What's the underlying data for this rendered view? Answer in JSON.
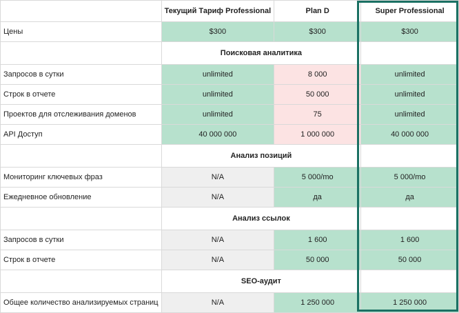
{
  "columns": [
    "",
    "Текущий Тариф Professional",
    "Plan D",
    "Super Professional"
  ],
  "rows": [
    {
      "type": "data",
      "label": "Цены",
      "cells": [
        {
          "text": "$300",
          "fill": "green"
        },
        {
          "text": "$300",
          "fill": "green"
        },
        {
          "text": "$300",
          "fill": "green"
        }
      ]
    },
    {
      "type": "section",
      "title": "Поисковая аналитика"
    },
    {
      "type": "data",
      "label": "Запросов в сутки",
      "cells": [
        {
          "text": "unlimited",
          "fill": "green"
        },
        {
          "text": "8 000",
          "fill": "red"
        },
        {
          "text": "unlimited",
          "fill": "green"
        }
      ]
    },
    {
      "type": "data",
      "label": "Строк в отчете",
      "cells": [
        {
          "text": "unlimited",
          "fill": "green"
        },
        {
          "text": "50 000",
          "fill": "red"
        },
        {
          "text": "unlimited",
          "fill": "green"
        }
      ]
    },
    {
      "type": "data",
      "label": "Проектов для отслеживания доменов",
      "cells": [
        {
          "text": "unlimited",
          "fill": "green"
        },
        {
          "text": "75",
          "fill": "red"
        },
        {
          "text": "unlimited",
          "fill": "green"
        }
      ]
    },
    {
      "type": "data",
      "label": "API Доступ",
      "cells": [
        {
          "text": "40 000 000",
          "fill": "green"
        },
        {
          "text": "1 000 000",
          "fill": "red"
        },
        {
          "text": "40 000 000",
          "fill": "green"
        }
      ]
    },
    {
      "type": "section",
      "title": "Анализ позиций"
    },
    {
      "type": "data",
      "label": "Мониторинг ключевых фраз",
      "cells": [
        {
          "text": "N/A",
          "fill": "gray"
        },
        {
          "text": "5 000/mo",
          "fill": "green"
        },
        {
          "text": "5 000/mo",
          "fill": "green"
        }
      ]
    },
    {
      "type": "data",
      "label": "Ежедневное обновление",
      "cells": [
        {
          "text": "N/A",
          "fill": "gray"
        },
        {
          "text": "да",
          "fill": "green"
        },
        {
          "text": "да",
          "fill": "green"
        }
      ]
    },
    {
      "type": "section",
      "title": "Анализ ссылок"
    },
    {
      "type": "data",
      "label": "Запросов в сутки",
      "cells": [
        {
          "text": "N/A",
          "fill": "gray"
        },
        {
          "text": "1 600",
          "fill": "green"
        },
        {
          "text": "1 600",
          "fill": "green"
        }
      ]
    },
    {
      "type": "data",
      "label": "Строк в отчете",
      "cells": [
        {
          "text": "N/A",
          "fill": "gray"
        },
        {
          "text": "50 000",
          "fill": "green"
        },
        {
          "text": "50 000",
          "fill": "green"
        }
      ]
    },
    {
      "type": "section",
      "title": "SEO-аудит"
    },
    {
      "type": "data",
      "label": "Общее количество анализируемых страниц",
      "cells": [
        {
          "text": "N/A",
          "fill": "gray"
        },
        {
          "text": "1 250 000",
          "fill": "green"
        },
        {
          "text": "1 250 000",
          "fill": "green"
        }
      ]
    }
  ],
  "colors": {
    "green": "#b7e1cd",
    "red": "#fce3e3",
    "gray": "#efefef",
    "highlight_border": "#1a7063"
  },
  "highlighted_column": "Super Professional"
}
